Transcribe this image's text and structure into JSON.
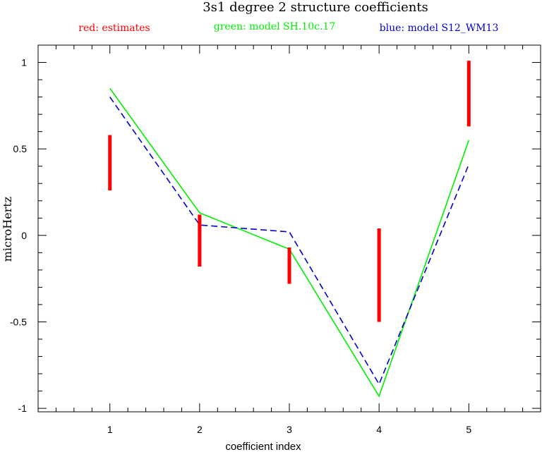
{
  "chart_data": {
    "type": "line",
    "title": "3s1 degree 2 structure coefficients",
    "legend": [
      {
        "text": "red: estimates",
        "color": "#ff0000"
      },
      {
        "text": "green: model SH.10c.17",
        "color": "#00ee00"
      },
      {
        "text": "blue: model S12_WM13",
        "color": "#0000cc"
      }
    ],
    "xlabel": "coefficient index",
    "ylabel": "microHertz",
    "xlim": [
      0.2,
      5.8
    ],
    "ylim": [
      -1.02,
      1.1
    ],
    "x_ticks": [
      1,
      2,
      3,
      4,
      5
    ],
    "x_tick_labels": [
      "1",
      "2",
      "3",
      "4",
      "5"
    ],
    "y_ticks": [
      -1,
      -0.5,
      0,
      0.5,
      1
    ],
    "y_tick_labels": [
      "-1",
      "-0.5",
      "0",
      "0.5",
      "1"
    ],
    "y_minor_step": 0.1,
    "x_minor_step": 0.2,
    "grid": false,
    "estimates": {
      "name": "estimates",
      "color": "#ff0000",
      "style": "error-bar",
      "x": [
        1,
        2,
        3,
        4,
        5
      ],
      "low": [
        0.26,
        -0.18,
        -0.28,
        -0.5,
        0.63
      ],
      "high": [
        0.58,
        0.12,
        -0.07,
        0.04,
        1.01
      ]
    },
    "series": [
      {
        "name": "SH.10c.17",
        "color": "#00ee00",
        "style": "solid",
        "x": [
          1,
          2,
          3,
          4,
          5
        ],
        "y": [
          0.85,
          0.13,
          -0.08,
          -0.93,
          0.55
        ]
      },
      {
        "name": "S12_WM13",
        "color": "#0000cc",
        "style": "dashed",
        "x": [
          1,
          2,
          3,
          4,
          5
        ],
        "y": [
          0.8,
          0.06,
          0.02,
          -0.86,
          0.41
        ]
      }
    ]
  }
}
